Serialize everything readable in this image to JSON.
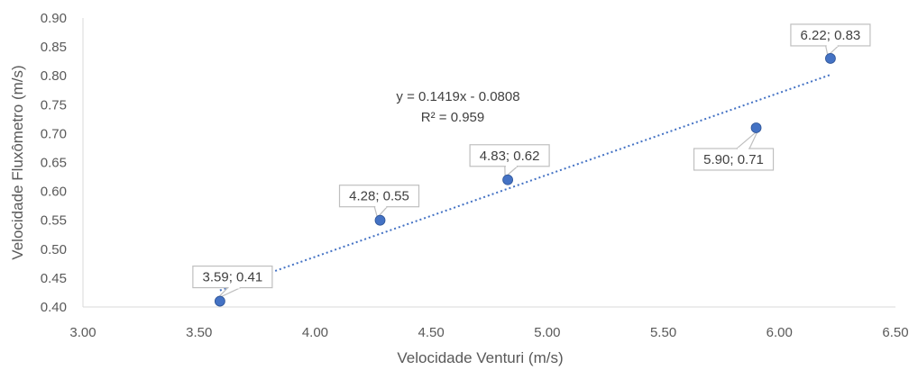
{
  "chart_data": {
    "type": "scatter",
    "xlabel": "Velocidade Venturi (m/s)",
    "ylabel": "Velocidade Fluxômetro (m/s)",
    "xlim": [
      3.0,
      6.5
    ],
    "ylim": [
      0.4,
      0.9
    ],
    "x_ticks": [
      "3.00",
      "3.50",
      "4.00",
      "4.50",
      "5.00",
      "5.50",
      "6.00",
      "6.50"
    ],
    "y_ticks": [
      "0.40",
      "0.45",
      "0.50",
      "0.55",
      "0.60",
      "0.65",
      "0.70",
      "0.75",
      "0.80",
      "0.85",
      "0.90"
    ],
    "points": [
      {
        "x": 3.59,
        "y": 0.41,
        "label": "3.59; 0.41"
      },
      {
        "x": 4.28,
        "y": 0.55,
        "label": "4.28; 0.55"
      },
      {
        "x": 4.83,
        "y": 0.62,
        "label": "4.83; 0.62"
      },
      {
        "x": 5.9,
        "y": 0.71,
        "label": "5.90; 0.71"
      },
      {
        "x": 6.22,
        "y": 0.83,
        "label": "6.22; 0.83"
      }
    ],
    "trendline": {
      "type": "linear",
      "slope": 0.1419,
      "intercept": -0.0808,
      "equation": "y = 0.1419x - 0.0808",
      "r_squared": "R² = 0.959"
    },
    "grid": false,
    "legend": "none",
    "colors": {
      "marker": "#4472C4",
      "trendline": "#4472C4",
      "axis": "#D9D9D9",
      "text": "#595959"
    }
  }
}
